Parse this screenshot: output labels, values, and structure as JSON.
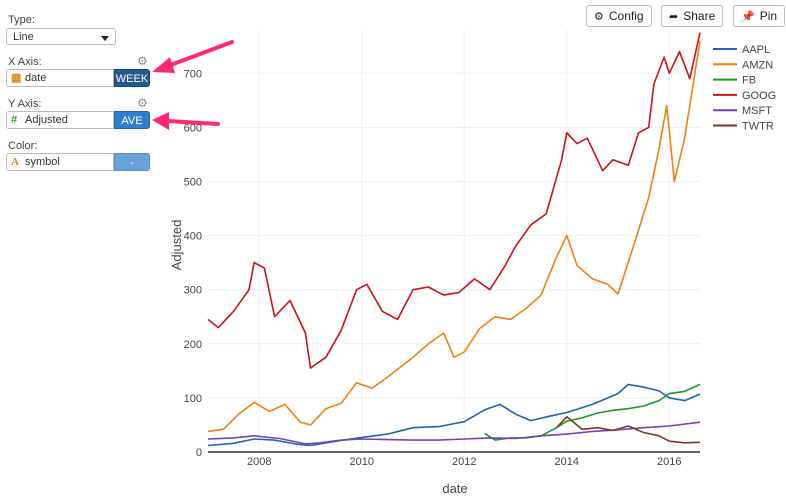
{
  "sidebar": {
    "type_label": "Type:",
    "type_value": "Line",
    "x_label": "X Axis:",
    "x_field": "date",
    "x_agg": "WEEK",
    "y_label": "Y Axis:",
    "y_field": "Adjusted",
    "y_agg": "AVE",
    "color_label": "Color:",
    "color_field": "symbol",
    "color_agg": "-"
  },
  "toolbar": {
    "config_label": "Config",
    "share_label": "Share",
    "pin_label": "Pin"
  },
  "colors": {
    "aapl": "#1f65b0",
    "amzn": "#f0800f",
    "fb": "#1e9a22",
    "goog": "#c91417",
    "msft": "#7a3fb4",
    "twtr": "#7a3a24",
    "arrow": "#ff2a6d",
    "week_btn": "#24598f",
    "ave_btn": "#2f7fd0",
    "color_btn": "#6aa2d8"
  },
  "chart_data": {
    "type": "line",
    "xlabel": "date",
    "ylabel": "Adjusted",
    "xlim": [
      2007.0,
      2016.6
    ],
    "ylim": [
      0,
      780
    ],
    "x_ticks": [
      "2008",
      "2010",
      "2012",
      "2014",
      "2016"
    ],
    "x_tick_values": [
      2008,
      2010,
      2012,
      2014,
      2016
    ],
    "y_ticks": [
      "0",
      "100",
      "200",
      "300",
      "400",
      "500",
      "600",
      "700"
    ],
    "y_tick_values": [
      0,
      100,
      200,
      300,
      400,
      500,
      600,
      700
    ],
    "grid": true,
    "legend_position": "top-right",
    "series": [
      {
        "name": "AAPL",
        "color": "#1f65b0",
        "x": [
          2007.0,
          2007.5,
          2007.9,
          2008.3,
          2008.7,
          2009.0,
          2009.5,
          2010.0,
          2010.5,
          2011.0,
          2011.5,
          2012.0,
          2012.4,
          2012.7,
          2013.0,
          2013.3,
          2013.7,
          2014.0,
          2014.5,
          2015.0,
          2015.2,
          2015.5,
          2015.8,
          2016.0,
          2016.3,
          2016.6
        ],
        "y": [
          12,
          16,
          24,
          22,
          15,
          12,
          20,
          27,
          33,
          45,
          47,
          56,
          78,
          88,
          70,
          58,
          67,
          73,
          88,
          108,
          125,
          120,
          113,
          100,
          95,
          107
        ]
      },
      {
        "name": "AMZN",
        "color": "#f0800f",
        "x": [
          2007.0,
          2007.3,
          2007.6,
          2007.9,
          2008.2,
          2008.5,
          2008.8,
          2009.0,
          2009.3,
          2009.6,
          2009.9,
          2010.2,
          2010.5,
          2010.8,
          2011.0,
          2011.3,
          2011.6,
          2011.8,
          2012.0,
          2012.3,
          2012.6,
          2012.9,
          2013.2,
          2013.5,
          2013.8,
          2014.0,
          2014.2,
          2014.5,
          2014.8,
          2015.0,
          2015.3,
          2015.6,
          2015.8,
          2015.95,
          2016.1,
          2016.3,
          2016.5,
          2016.6
        ],
        "y": [
          38,
          42,
          70,
          92,
          75,
          88,
          55,
          50,
          80,
          90,
          128,
          118,
          138,
          160,
          175,
          200,
          220,
          175,
          185,
          228,
          250,
          245,
          265,
          290,
          360,
          400,
          345,
          320,
          310,
          292,
          380,
          470,
          560,
          640,
          500,
          580,
          700,
          760
        ]
      },
      {
        "name": "FB",
        "color": "#1e9a22",
        "x": [
          2012.4,
          2012.6,
          2012.9,
          2013.2,
          2013.5,
          2013.8,
          2014.0,
          2014.3,
          2014.6,
          2014.9,
          2015.2,
          2015.5,
          2015.8,
          2016.0,
          2016.3,
          2016.6
        ],
        "y": [
          34,
          22,
          26,
          26,
          30,
          45,
          57,
          63,
          72,
          77,
          80,
          85,
          95,
          108,
          112,
          125
        ]
      },
      {
        "name": "GOOG",
        "color": "#c91417",
        "x": [
          2007.0,
          2007.2,
          2007.5,
          2007.8,
          2007.9,
          2008.1,
          2008.3,
          2008.6,
          2008.9,
          2009.0,
          2009.3,
          2009.6,
          2009.9,
          2010.1,
          2010.4,
          2010.7,
          2011.0,
          2011.3,
          2011.6,
          2011.9,
          2012.2,
          2012.5,
          2012.8,
          2013.0,
          2013.3,
          2013.6,
          2013.9,
          2014.0,
          2014.2,
          2014.4,
          2014.7,
          2014.9,
          2015.2,
          2015.4,
          2015.6,
          2015.7,
          2015.9,
          2016.0,
          2016.2,
          2016.4,
          2016.6
        ],
        "y": [
          245,
          230,
          260,
          300,
          350,
          340,
          250,
          280,
          220,
          155,
          175,
          225,
          300,
          310,
          260,
          245,
          300,
          305,
          290,
          295,
          320,
          300,
          345,
          380,
          420,
          440,
          540,
          590,
          570,
          580,
          520,
          540,
          530,
          590,
          600,
          680,
          730,
          700,
          740,
          690,
          775
        ]
      },
      {
        "name": "MSFT",
        "color": "#7a3fb4",
        "x": [
          2007.0,
          2007.5,
          2007.9,
          2008.4,
          2008.9,
          2009.2,
          2009.6,
          2010.0,
          2010.5,
          2011.0,
          2011.5,
          2012.0,
          2012.5,
          2013.0,
          2013.5,
          2014.0,
          2014.5,
          2015.0,
          2015.5,
          2016.0,
          2016.6
        ],
        "y": [
          24,
          26,
          30,
          25,
          15,
          17,
          22,
          24,
          23,
          22,
          22,
          24,
          26,
          25,
          30,
          33,
          38,
          41,
          45,
          48,
          55
        ]
      },
      {
        "name": "TWTR",
        "color": "#7a3a24",
        "x": [
          2013.8,
          2014.0,
          2014.3,
          2014.6,
          2014.9,
          2015.2,
          2015.5,
          2015.8,
          2016.0,
          2016.3,
          2016.6
        ],
        "y": [
          45,
          65,
          42,
          45,
          40,
          48,
          36,
          30,
          20,
          17,
          18
        ]
      }
    ]
  }
}
